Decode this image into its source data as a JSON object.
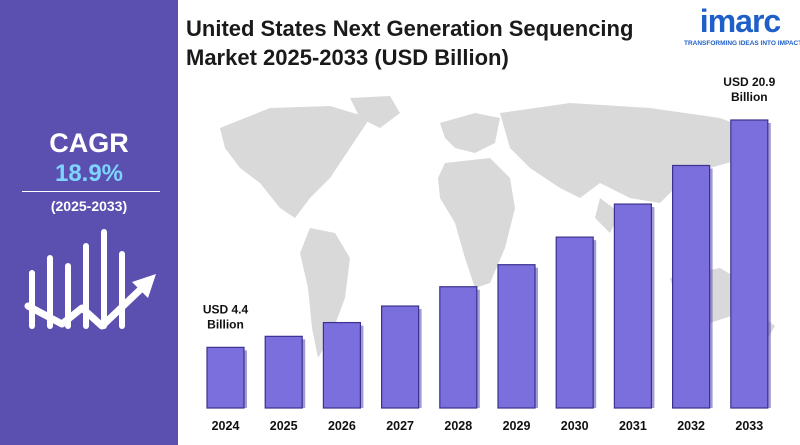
{
  "header": {
    "title_line1": "United States Next Generation Sequencing",
    "title_line2": "Market 2025-2033 (USD Billion)"
  },
  "logo": {
    "wordmark": "imarc",
    "tagline": "TRANSFORMING IDEAS INTO IMPACT"
  },
  "left_panel": {
    "cagr_label": "CAGR",
    "cagr_value": "18.9%",
    "period": "(2025-2033)",
    "icon": "growth-bar-chart-arrow-icon"
  },
  "colors": {
    "panel": "#5b4fb0",
    "bar": "#7a6fdc",
    "bar_dark": "#5347b0",
    "cagr_value": "#7fd3ff",
    "logo": "#1f5fc9",
    "map": "#d9d9d9"
  },
  "chart_data": {
    "type": "bar",
    "title": "United States Next Generation Sequencing Market 2025-2033 (USD Billion)",
    "categories": [
      "2024",
      "2025",
      "2026",
      "2027",
      "2028",
      "2029",
      "2030",
      "2031",
      "2032",
      "2033"
    ],
    "values": [
      4.4,
      5.2,
      6.2,
      7.4,
      8.8,
      10.4,
      12.4,
      14.8,
      17.6,
      20.9
    ],
    "annotations": [
      {
        "category": "2024",
        "line1": "USD 4.4",
        "line2": "Billion"
      },
      {
        "category": "2033",
        "line1": "USD 20.9",
        "line2": "Billion"
      }
    ],
    "ylim": [
      0,
      22
    ],
    "grid": false,
    "legend": "none"
  }
}
